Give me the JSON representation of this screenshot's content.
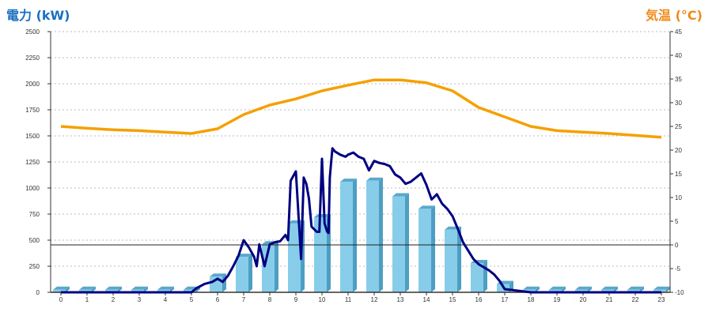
{
  "titles": {
    "left": "電力 (kW)",
    "right": "気温 (°C)"
  },
  "colors": {
    "bar_front": "#87cdea",
    "bar_side": "#4d9ec2",
    "bar_top": "#5aa8cc",
    "power_line": "#000080",
    "temperature_line": "#f5a000",
    "grid": "#bbbbbb",
    "left_title": "#1a6fc0",
    "right_title": "#f08a1a"
  },
  "chart_data": {
    "type": "bar",
    "grid": true,
    "legend": "none",
    "x": {
      "categories": [
        "0",
        "1",
        "2",
        "3",
        "4",
        "5",
        "6",
        "7",
        "8",
        "9",
        "10",
        "11",
        "12",
        "13",
        "14",
        "15",
        "16",
        "17",
        "18",
        "19",
        "20",
        "21",
        "22",
        "23"
      ],
      "range": [
        0,
        23
      ]
    },
    "y_left": {
      "label": "電力 (kW)",
      "range": [
        0,
        2500
      ],
      "ticks": [
        0,
        250,
        500,
        750,
        1000,
        1250,
        1500,
        1750,
        2000,
        2250,
        2500
      ]
    },
    "y_right": {
      "label": "気温 (°C)",
      "range": [
        -10,
        45
      ],
      "ticks": [
        -10,
        -5,
        0,
        5,
        10,
        15,
        20,
        25,
        30,
        35,
        40,
        45
      ],
      "reference_line": 0
    },
    "series": [
      {
        "kind": "bar",
        "axis": "left",
        "values": [
          25,
          25,
          25,
          25,
          25,
          25,
          150,
          340,
          460,
          660,
          720,
          1060,
          1070,
          920,
          800,
          600,
          280,
          80,
          25,
          25,
          25,
          25,
          25,
          25
        ]
      },
      {
        "kind": "line",
        "axis": "left",
        "x": [
          0,
          0.5,
          1,
          1.5,
          2,
          2.5,
          3,
          3.5,
          4,
          4.5,
          5,
          5.2,
          5.5,
          5.8,
          6,
          6.2,
          6.4,
          6.6,
          6.8,
          7,
          7.2,
          7.4,
          7.5,
          7.6,
          7.8,
          8,
          8.2,
          8.4,
          8.6,
          8.7,
          8.8,
          9,
          9.2,
          9.3,
          9.4,
          9.5,
          9.6,
          9.8,
          9.9,
          10,
          10.1,
          10.2,
          10.25,
          10.3,
          10.35,
          10.4,
          10.5,
          10.7,
          10.9,
          11,
          11.2,
          11.4,
          11.6,
          11.8,
          12,
          12.2,
          12.4,
          12.6,
          12.8,
          13,
          13.2,
          13.4,
          13.6,
          13.8,
          14,
          14.2,
          14.4,
          14.6,
          14.8,
          15,
          15.2,
          15.4,
          15.6,
          15.8,
          16,
          16.2,
          16.4,
          16.6,
          16.8,
          17,
          18,
          19,
          20,
          21,
          22,
          23
        ],
        "values": [
          0,
          0,
          0,
          0,
          0,
          0,
          0,
          0,
          0,
          0,
          0,
          40,
          80,
          100,
          130,
          100,
          160,
          250,
          350,
          500,
          430,
          340,
          250,
          460,
          250,
          460,
          480,
          490,
          550,
          500,
          1070,
          1160,
          320,
          1100,
          1040,
          900,
          630,
          580,
          580,
          1280,
          660,
          580,
          570,
          1100,
          1250,
          1380,
          1350,
          1320,
          1300,
          1320,
          1340,
          1300,
          1280,
          1170,
          1260,
          1240,
          1230,
          1210,
          1130,
          1100,
          1040,
          1060,
          1100,
          1140,
          1030,
          890,
          940,
          850,
          800,
          730,
          610,
          480,
          400,
          320,
          270,
          240,
          210,
          170,
          110,
          30,
          0,
          0,
          0,
          0,
          0,
          0
        ],
        "approximate": true
      },
      {
        "kind": "line",
        "axis": "right",
        "x": [
          0,
          1,
          2,
          3,
          4,
          5,
          6,
          7,
          8,
          9,
          10,
          11,
          12,
          13,
          14,
          15,
          16,
          17,
          18,
          19,
          20,
          21,
          22,
          23
        ],
        "values": [
          25,
          24.6,
          24.3,
          24.1,
          23.8,
          23.5,
          24.5,
          27.5,
          29.5,
          30.8,
          32.5,
          33.7,
          34.8,
          34.8,
          34.2,
          32.5,
          29,
          27,
          25,
          24.1,
          23.8,
          23.5,
          23.1,
          22.7
        ]
      }
    ]
  }
}
